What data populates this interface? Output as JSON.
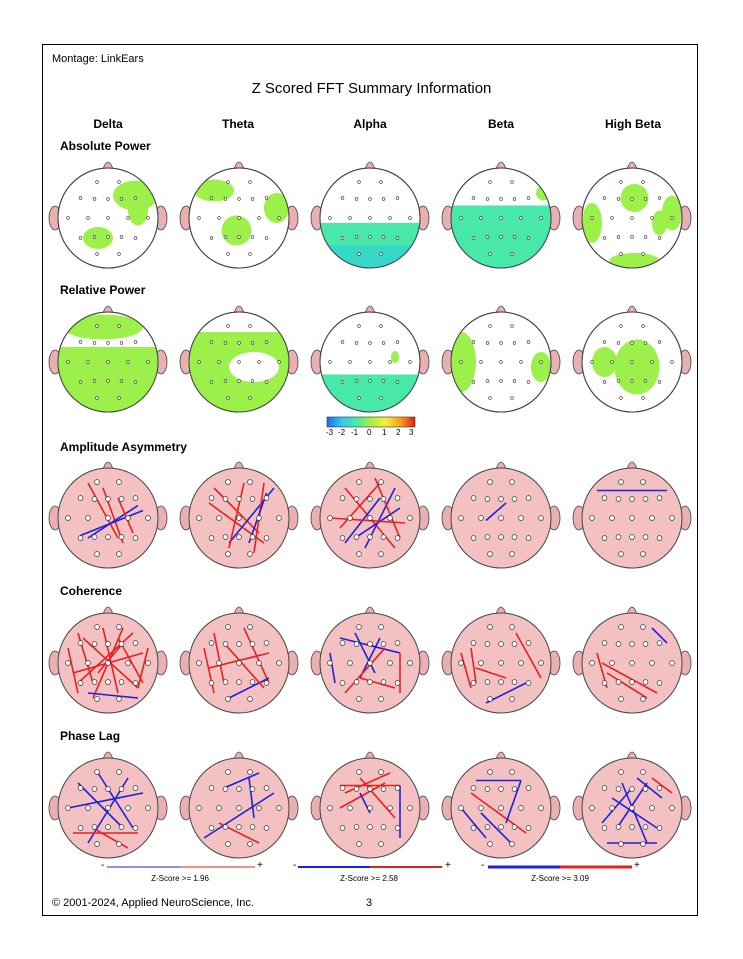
{
  "montage": "Montage:  LinkEars",
  "title": "Z Scored FFT Summary Information",
  "bands": [
    "Delta",
    "Theta",
    "Alpha",
    "Beta",
    "High Beta"
  ],
  "rows": [
    "Absolute Power",
    "Relative Power",
    "Amplitude Asymmetry",
    "Coherence",
    "Phase Lag"
  ],
  "colorbar": {
    "ticks": [
      "-3",
      "-2",
      "-1",
      "0",
      "1",
      "2",
      "3"
    ],
    "colors": [
      "#1a6fe6",
      "#36c7f0",
      "#48e8a8",
      "#a8f040",
      "#f2f040",
      "#f5a020",
      "#e02010"
    ]
  },
  "zscore_legends": [
    {
      "minus": "-",
      "plus": "+",
      "label": "Z-Score >= 1.96"
    },
    {
      "minus": "-",
      "plus": "+",
      "label": "Z-Score >= 2.58"
    },
    {
      "minus": "-",
      "plus": "+",
      "label": "Z-Score >= 3.09"
    }
  ],
  "colors": {
    "head_fill": "#f3c1c1",
    "map_green": "#9cf04a",
    "map_cyan": "#3ee0a8",
    "line_red": "#e82020",
    "line_blue": "#2020d8"
  },
  "footer": "© 2001-2024, Applied NeuroScience, Inc.",
  "page_number": "3"
}
